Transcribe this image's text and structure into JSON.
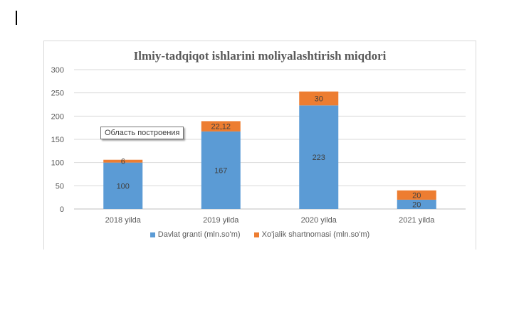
{
  "chart_data": {
    "type": "bar",
    "stacked": true,
    "title": "Ilmiy-tadqiqot ishlarini moliyalashtirish miqdori",
    "categories": [
      "2018 yilda",
      "2019 yilda",
      "2020 yilda",
      "2021 yilda"
    ],
    "series": [
      {
        "name": "Davlat granti (mln.so'm)",
        "values": [
          100,
          167,
          223,
          20
        ],
        "labels": [
          "100",
          "167",
          "223",
          "20"
        ],
        "color": "#5b9bd5"
      },
      {
        "name": "Xo'jalik shartnomasi (mln.so'm)",
        "values": [
          6,
          22.12,
          30,
          20
        ],
        "labels": [
          "6",
          "22,12",
          "30",
          "20"
        ],
        "color": "#ed7d31"
      }
    ],
    "ylim": [
      0,
      300
    ],
    "yticks": [
      0,
      50,
      100,
      150,
      200,
      250,
      300
    ],
    "grid": true,
    "legend": "bottom"
  },
  "tooltip": "Область построения"
}
